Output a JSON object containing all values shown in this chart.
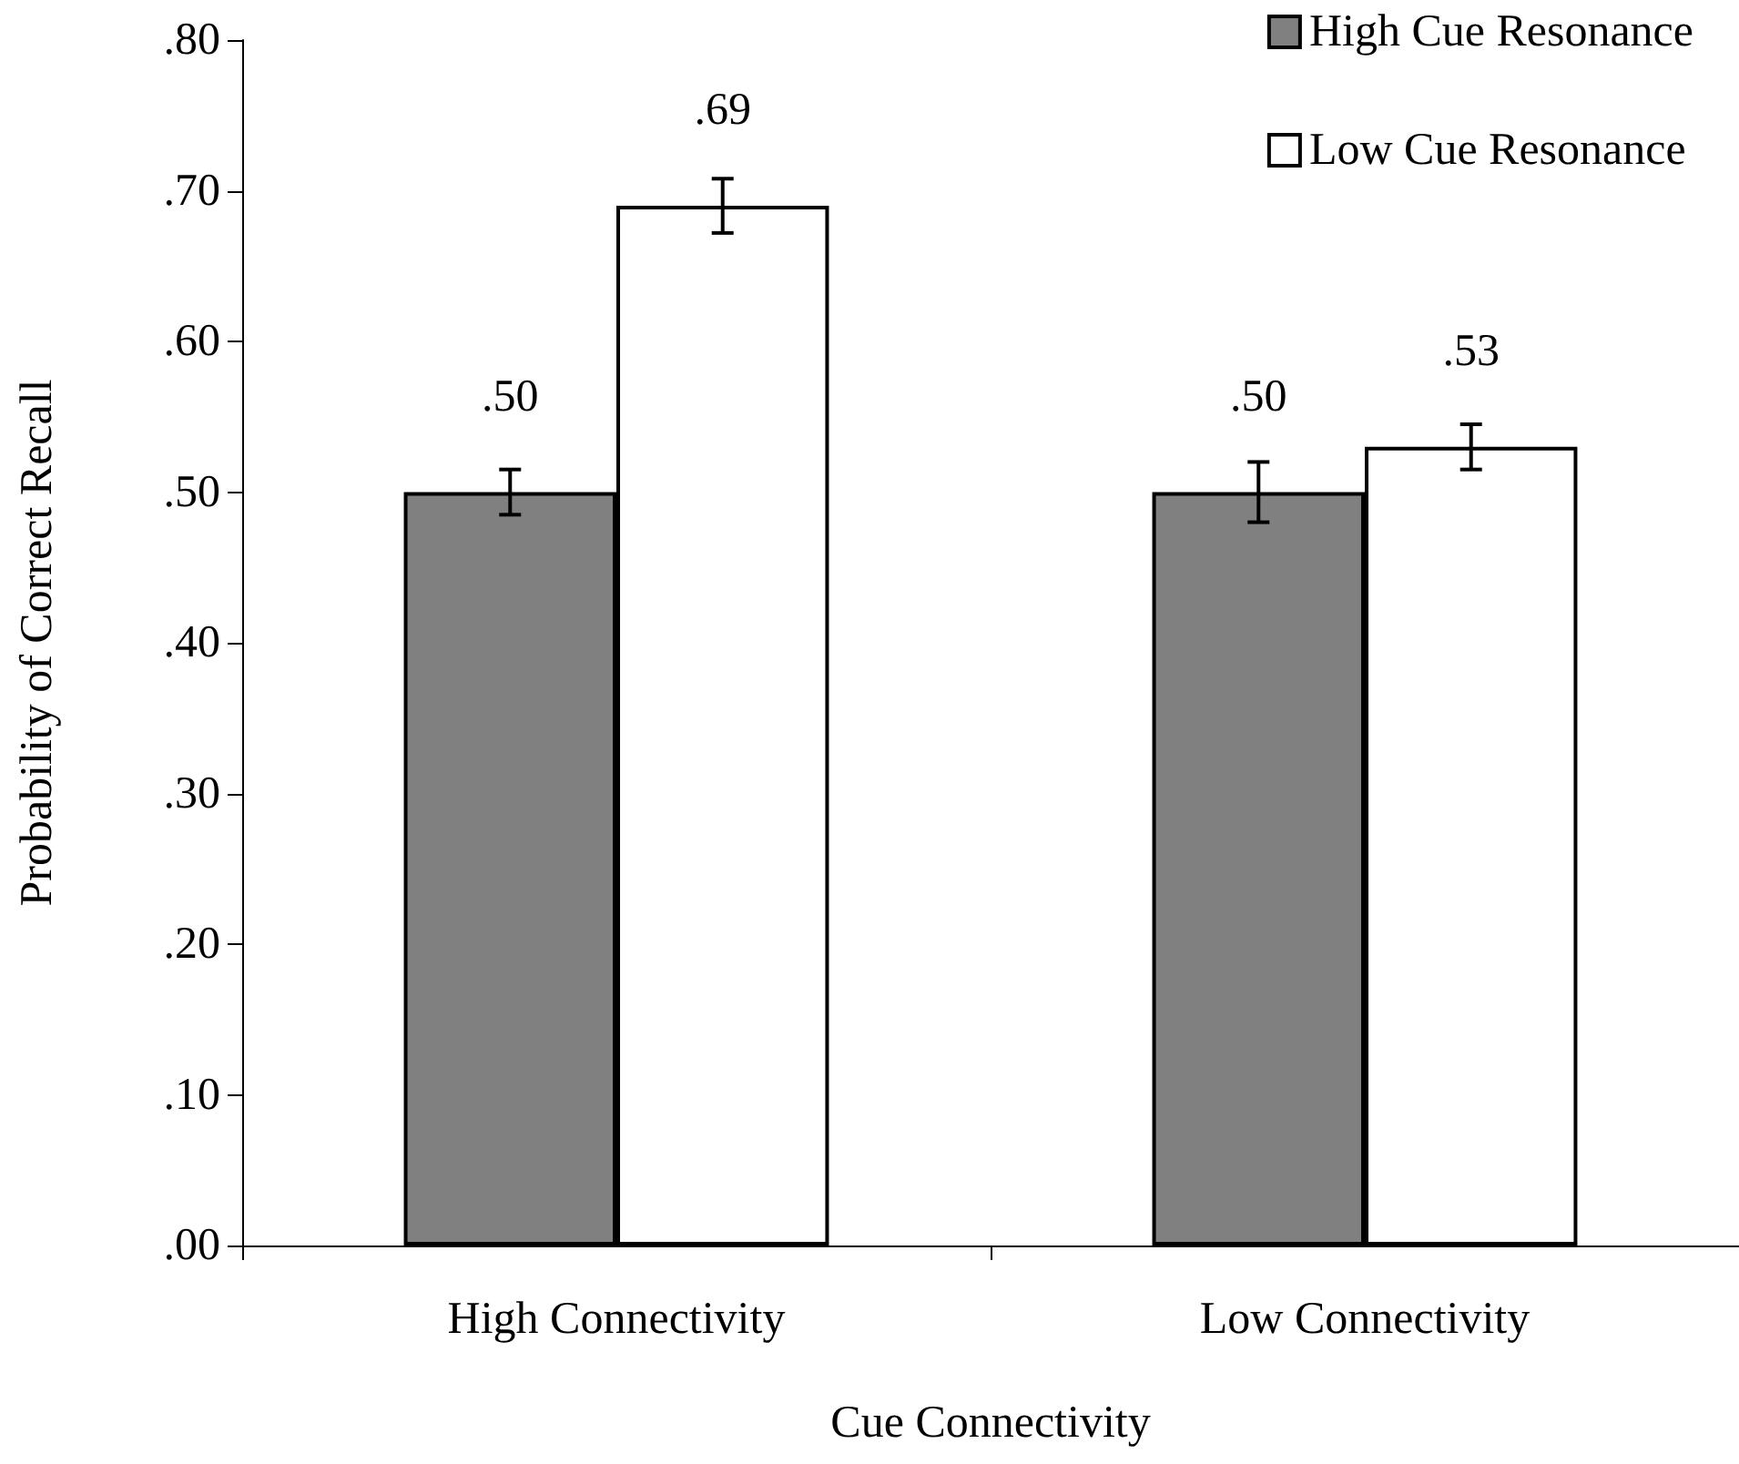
{
  "chart_data": {
    "type": "bar",
    "xlabel": "Cue Connectivity",
    "ylabel": "Probability of Correct Recall",
    "categories": [
      "High Connectivity",
      "Low Connectivity"
    ],
    "series": [
      {
        "name": "High Cue Resonance",
        "color": "#808080",
        "values": [
          0.5,
          0.5
        ],
        "errors": [
          0.015,
          0.02
        ],
        "value_labels": [
          ".50",
          ".50"
        ]
      },
      {
        "name": "Low Cue Resonance",
        "color": "#ffffff",
        "values": [
          0.69,
          0.53
        ],
        "errors": [
          0.018,
          0.015
        ],
        "value_labels": [
          ".69",
          ".53"
        ]
      }
    ],
    "ylim": [
      0,
      0.8
    ],
    "yticks": [
      {
        "value": 0,
        "label": ".00"
      },
      {
        "value": 0.1,
        "label": ".10"
      },
      {
        "value": 0.2,
        "label": ".20"
      },
      {
        "value": 0.3,
        "label": ".30"
      },
      {
        "value": 0.4,
        "label": ".40"
      },
      {
        "value": 0.5,
        "label": ".50"
      },
      {
        "value": 0.6,
        "label": ".60"
      },
      {
        "value": 0.7,
        "label": ".70"
      },
      {
        "value": 0.8,
        "label": ".80"
      }
    ],
    "grid": false,
    "legend": "top right"
  }
}
